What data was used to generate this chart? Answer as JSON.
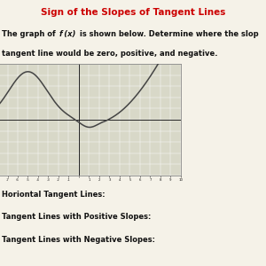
{
  "title": "Sign of the Slopes of Tangent Lines",
  "title_color": "#cc0000",
  "title_bg": "#c8d8b8",
  "page_bg": "#f5f2e8",
  "graph_bg": "#d8d8c8",
  "graph_border": "#888888",
  "curve_color": "#444444",
  "axes_color": "#222222",
  "text_color": "#111111",
  "desc_line1": "raph of ",
  "desc_italic": "f (x)",
  "desc_rest1": " is shown below. Determine where the slop",
  "desc_line2": "ngent line would be zero, positive, and negative.",
  "label1": "ontal Tangent Lines:",
  "label2": "ent Lines with Positive Slopes:",
  "label3": "ent Lines with Negative Slopes:",
  "xlim": [
    -8,
    10
  ],
  "ylim": [
    -5,
    5
  ]
}
